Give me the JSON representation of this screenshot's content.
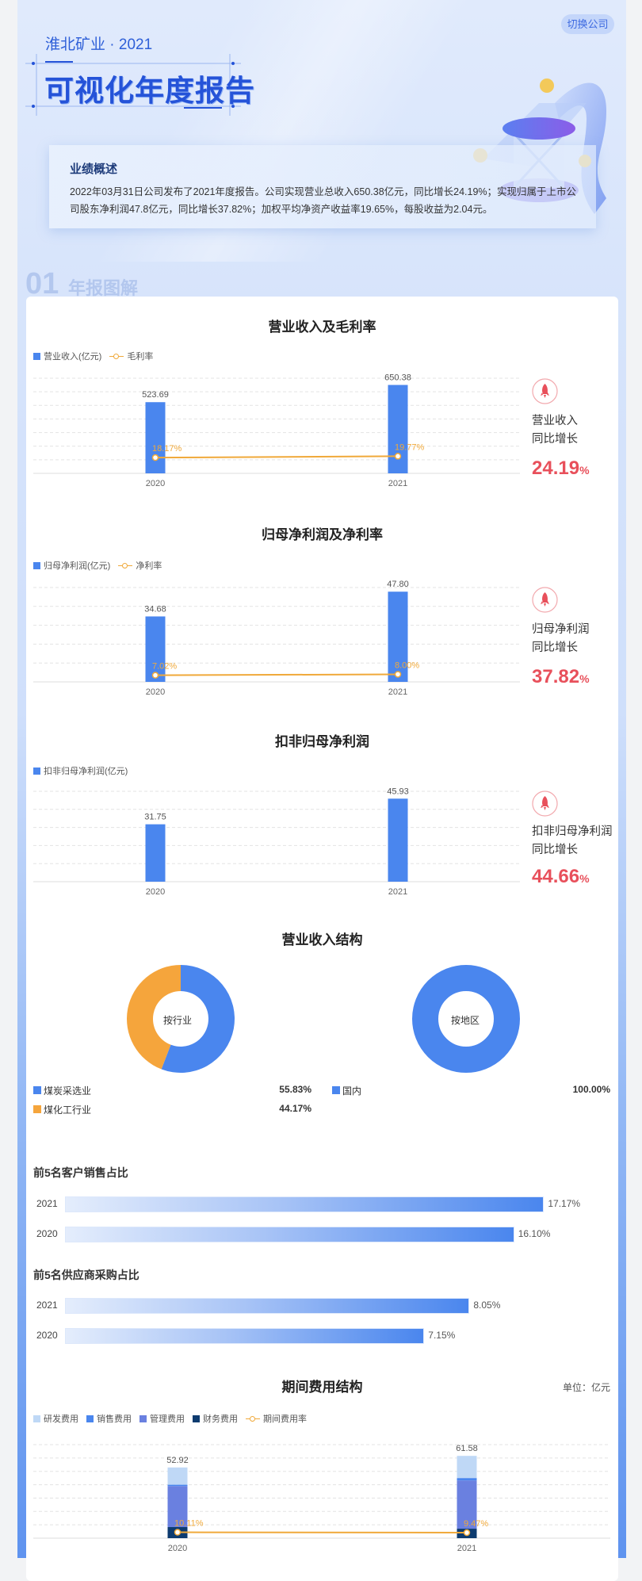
{
  "header": {
    "switch_button": "切换公司",
    "company_year": "淮北矿业 · 2021",
    "title": "可视化年度报告"
  },
  "summary": {
    "title": "业绩概述",
    "text": "2022年03月31日公司发布了2021年度报告。公司实现营业总收入650.38亿元，同比增长24.19%；实现归属于上市公司股东净利润47.8亿元，同比增长37.82%；加权平均净资产收益率19.65%，每股收益为2.04元。"
  },
  "section": {
    "number": "01",
    "title": "年报图解"
  },
  "highlights": [
    {
      "label1": "营业收入",
      "label2": "同比增长",
      "value": "24.19",
      "unit": "%"
    },
    {
      "label1": "归母净利润",
      "label2": "同比增长",
      "value": "37.82",
      "unit": "%"
    },
    {
      "label1": "扣非归母净利润",
      "label2": "同比增长",
      "value": "44.66",
      "unit": "%"
    }
  ],
  "colors": {
    "bar": "#4a86ee",
    "line": "#f0a93a",
    "orange": "#f5a53c",
    "growth": "#e8505b",
    "rd": "#bfd8f6",
    "sales": "#4a86ee",
    "mgmt": "#6a80e0",
    "finance": "#0d3b6f"
  },
  "chart_data": [
    {
      "type": "bar",
      "title": "营业收入及毛利率",
      "categories": [
        "2020",
        "2021"
      ],
      "series": [
        {
          "name": "营业收入(亿元)",
          "type": "bar",
          "values": [
            523.69,
            650.38
          ]
        },
        {
          "name": "毛利率",
          "type": "line",
          "values": [
            18.17,
            19.77
          ],
          "unit": "%"
        }
      ],
      "ylim": [
        0,
        700
      ],
      "y2lim": [
        0,
        110
      ],
      "grid": true,
      "legend": "top-left"
    },
    {
      "type": "bar",
      "title": "归母净利润及净利率",
      "categories": [
        "2020",
        "2021"
      ],
      "series": [
        {
          "name": "归母净利润(亿元)",
          "type": "bar",
          "values": [
            34.68,
            47.8
          ]
        },
        {
          "name": "净利率",
          "type": "line",
          "values": [
            7.02,
            8.0
          ],
          "unit": "%"
        }
      ],
      "ylim": [
        0,
        50
      ],
      "y2lim": [
        0,
        100
      ],
      "grid": true,
      "legend": "top-left"
    },
    {
      "type": "bar",
      "title": "扣非归母净利润",
      "categories": [
        "2020",
        "2021"
      ],
      "series": [
        {
          "name": "扣非归母净利润(亿元)",
          "type": "bar",
          "values": [
            31.75,
            45.93
          ]
        }
      ],
      "ylim": [
        0,
        50
      ],
      "grid": true,
      "legend": "top-left"
    },
    {
      "type": "pie",
      "title": "营业收入结构",
      "center_label": "按行业",
      "slices": [
        {
          "name": "煤炭采选业",
          "value": 55.83,
          "label": "55.83%"
        },
        {
          "name": "煤化工行业",
          "value": 44.17,
          "label": "44.17%"
        }
      ]
    },
    {
      "type": "pie",
      "center_label": "按地区",
      "slices": [
        {
          "name": "国内",
          "value": 100.0,
          "label": "100.00%"
        }
      ]
    },
    {
      "type": "bar",
      "orientation": "horizontal",
      "title": "前5名客户销售占比",
      "categories": [
        "2021",
        "2020"
      ],
      "values": [
        17.17,
        16.1
      ],
      "labels": [
        "17.17%",
        "16.10%"
      ]
    },
    {
      "type": "bar",
      "orientation": "horizontal",
      "title": "前5名供应商采购占比",
      "categories": [
        "2021",
        "2020"
      ],
      "values": [
        8.05,
        7.15
      ],
      "labels": [
        "8.05%",
        "7.15%"
      ]
    },
    {
      "type": "bar",
      "stacked": true,
      "title": "期间费用结构",
      "unit_label": "单位：亿元",
      "categories": [
        "2020",
        "2021"
      ],
      "totals": [
        52.92,
        61.58
      ],
      "series": [
        {
          "name": "研发费用",
          "type": "bar",
          "values": [
            12.92,
            16.58
          ]
        },
        {
          "name": "销售费用",
          "type": "bar",
          "values": [
            0.98,
            1.8
          ]
        },
        {
          "name": "管理费用",
          "type": "bar",
          "values": [
            30.72,
            36.1
          ]
        },
        {
          "name": "财务费用",
          "type": "bar",
          "values": [
            8.3,
            7.1
          ]
        },
        {
          "name": "期间费用率",
          "type": "line",
          "values": [
            10.11,
            9.47
          ],
          "unit": "%"
        }
      ],
      "ylim": [
        0,
        70
      ],
      "y2lim": [
        0,
        160
      ],
      "grid": true,
      "legend": "top-left"
    }
  ]
}
